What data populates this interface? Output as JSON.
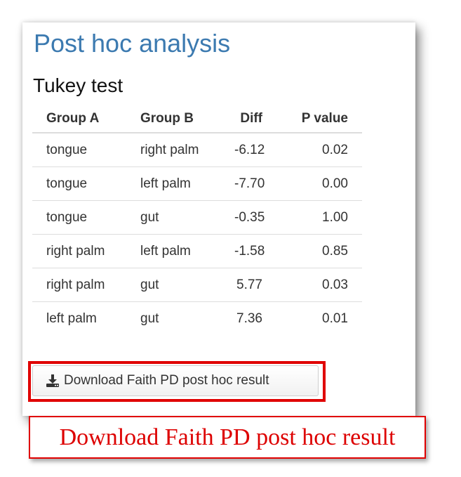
{
  "panel": {
    "title": "Post hoc analysis",
    "subtitle": "Tukey test"
  },
  "table": {
    "headers": [
      "Group A",
      "Group B",
      "Diff",
      "P value"
    ],
    "rows": [
      [
        "tongue",
        "right palm",
        "-6.12",
        "0.02"
      ],
      [
        "tongue",
        "left palm",
        "-7.70",
        "0.00"
      ],
      [
        "tongue",
        "gut",
        "-0.35",
        "1.00"
      ],
      [
        "right palm",
        "left palm",
        "-1.58",
        "0.85"
      ],
      [
        "right palm",
        "gut",
        "5.77",
        "0.03"
      ],
      [
        "left palm",
        "gut",
        "7.36",
        "0.01"
      ]
    ]
  },
  "download": {
    "label": "Download Faith PD post hoc result",
    "icon": "download-icon"
  },
  "caption": {
    "text": "Download Faith PD post hoc result"
  },
  "colors": {
    "title": "#3c7ab0",
    "highlight": "#e00000",
    "caption_text": "#dd0000"
  }
}
